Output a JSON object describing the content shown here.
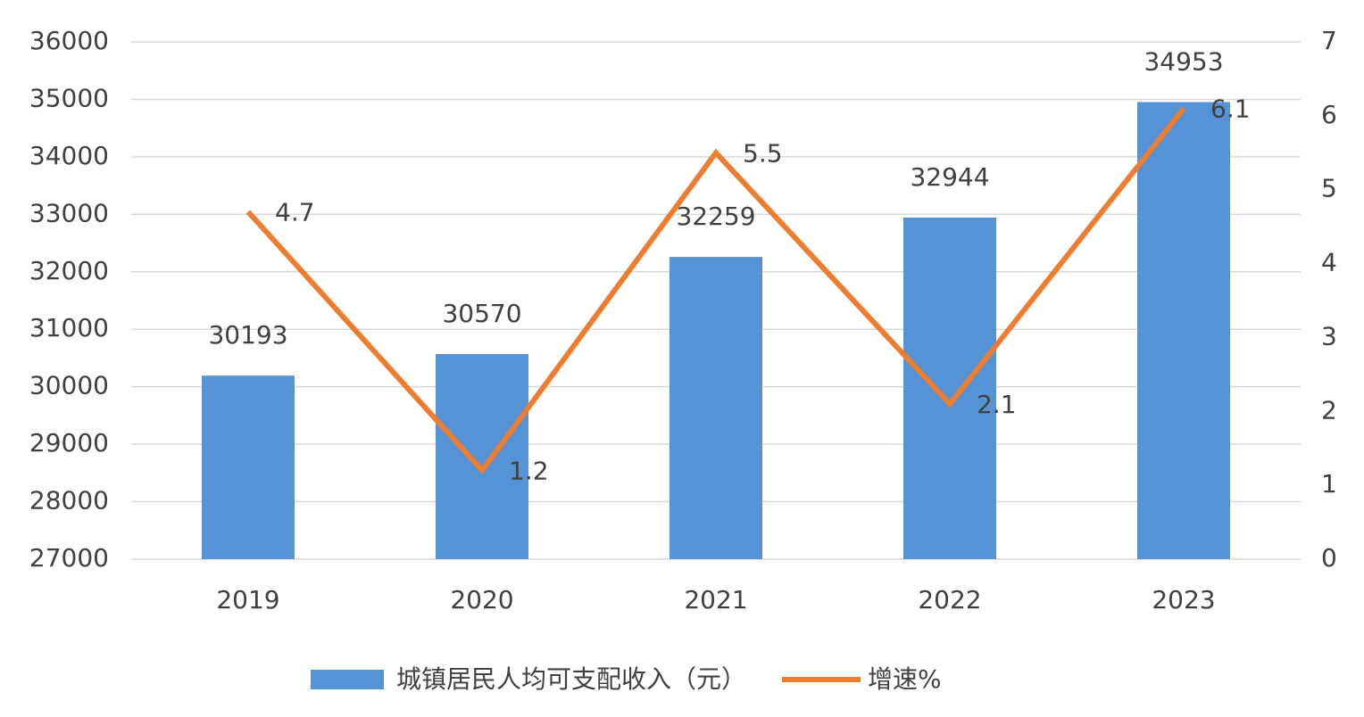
{
  "chart_data": {
    "type": "bar",
    "categories": [
      "2019",
      "2020",
      "2021",
      "2022",
      "2023"
    ],
    "series": [
      {
        "name": "城镇居民人均可支配收入（元）",
        "type": "bar",
        "color": "#5592d6",
        "values": [
          30193,
          30570,
          32259,
          32944,
          34953
        ]
      },
      {
        "name": "增速%",
        "type": "line",
        "axis": "y2",
        "color": "#ed7d31",
        "values": [
          4.7,
          1.2,
          5.5,
          2.1,
          6.1
        ]
      }
    ],
    "ylim": [
      27000,
      36000
    ],
    "yticks": [
      27000,
      28000,
      29000,
      30000,
      31000,
      32000,
      33000,
      34000,
      35000,
      36000
    ],
    "y2lim": [
      0,
      7
    ],
    "y2ticks": [
      0,
      1,
      2,
      3,
      4,
      5,
      6,
      7
    ],
    "grid": true,
    "legend": "bottom"
  }
}
